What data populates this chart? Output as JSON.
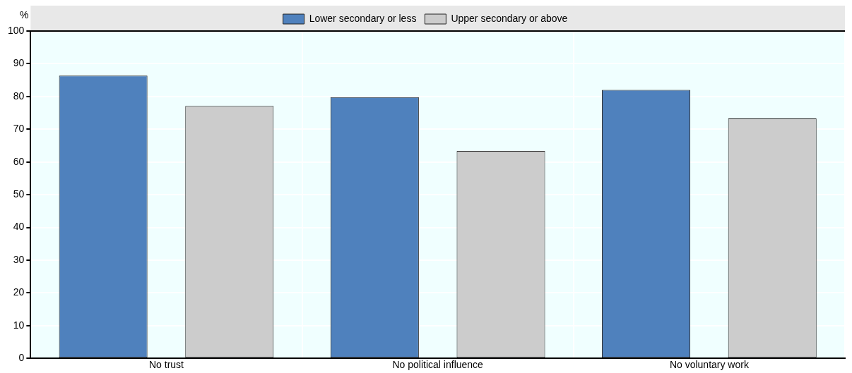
{
  "chart_data": {
    "type": "bar",
    "ylabel": "%",
    "categories": [
      "No trust",
      "No political influence",
      "No voluntary work"
    ],
    "series": [
      {
        "name": "Lower secondary or less",
        "color": "#4f81bd",
        "values": [
          86.4,
          79.8,
          82
        ]
      },
      {
        "name": "Upper secondary or above",
        "color": "#cccccc",
        "values": [
          77.1,
          63.4,
          73.3
        ]
      }
    ],
    "ylim": [
      0,
      100
    ],
    "yticks": [
      0,
      10,
      20,
      30,
      40,
      50,
      60,
      70,
      80,
      90,
      100
    ],
    "grid": true,
    "legend": "top"
  }
}
